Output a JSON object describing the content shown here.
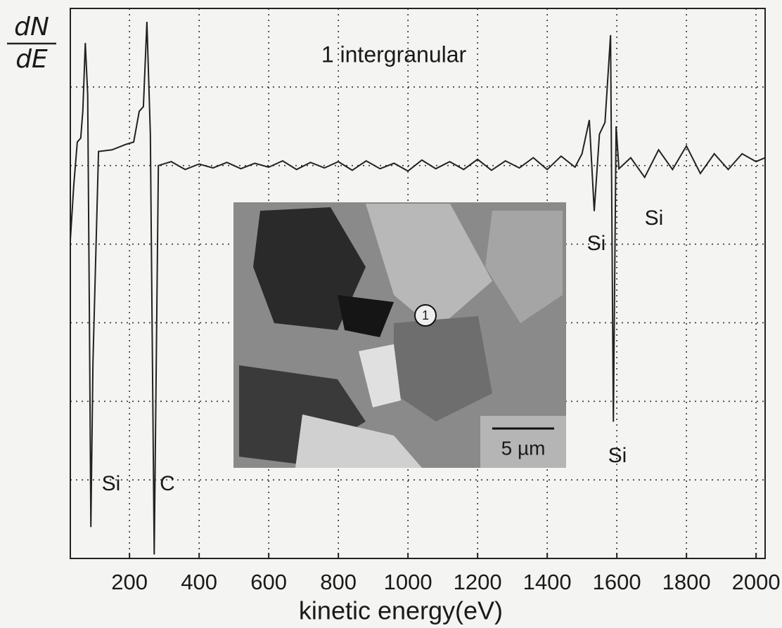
{
  "chart_data": {
    "type": "line",
    "ylabel": {
      "numerator": "dN",
      "denominator": "dE"
    },
    "xlabel": "kinetic energy(eV)",
    "color": "#222222",
    "grid": true,
    "xlim": [
      30,
      2026
    ],
    "xticks": [
      200,
      400,
      600,
      800,
      1000,
      1200,
      1400,
      1600,
      1800,
      2000
    ],
    "ylim": [
      0,
      7
    ],
    "yticks": [
      1,
      2,
      3,
      4,
      5,
      6
    ],
    "x": [
      30,
      40,
      50,
      60,
      66,
      73,
      80,
      85,
      89,
      95,
      111,
      150,
      190,
      212,
      228,
      240,
      250,
      260,
      271,
      283,
      320,
      360,
      400,
      440,
      480,
      520,
      560,
      600,
      640,
      680,
      720,
      760,
      800,
      840,
      880,
      920,
      960,
      1000,
      1040,
      1080,
      1120,
      1160,
      1200,
      1240,
      1280,
      1320,
      1360,
      1400,
      1440,
      1480,
      1500,
      1521,
      1535,
      1550,
      1566,
      1582,
      1590,
      1598,
      1606,
      1640,
      1680,
      1720,
      1760,
      1800,
      1840,
      1880,
      1920,
      1960,
      2000,
      2026
    ],
    "values": [
      4.05,
      4.75,
      5.3,
      5.35,
      5.7,
      6.56,
      5.9,
      3.0,
      0.4,
      2.5,
      5.18,
      5.2,
      5.27,
      5.3,
      5.69,
      5.75,
      6.83,
      5.4,
      0.05,
      5.0,
      5.05,
      4.95,
      5.02,
      4.97,
      5.04,
      4.96,
      5.03,
      4.98,
      5.06,
      4.95,
      5.04,
      4.97,
      5.05,
      4.94,
      5.06,
      4.96,
      5.03,
      4.93,
      5.07,
      4.96,
      5.05,
      4.95,
      5.08,
      4.94,
      5.06,
      4.97,
      5.1,
      4.95,
      5.12,
      4.98,
      5.15,
      5.58,
      4.42,
      5.4,
      5.55,
      6.66,
      1.74,
      5.5,
      4.96,
      5.1,
      4.85,
      5.2,
      4.95,
      5.25,
      4.9,
      5.15,
      4.95,
      5.15,
      5.05,
      5.1
    ],
    "annotations": [
      "1 intergranular",
      "Si",
      "C",
      "Si",
      "Si",
      "Si",
      "1",
      "5 µm"
    ]
  }
}
